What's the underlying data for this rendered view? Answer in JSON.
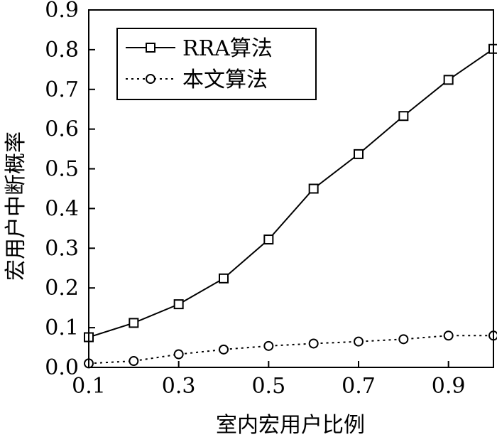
{
  "chart_data": {
    "type": "line",
    "xlabel": "室内宏用户比例",
    "ylabel": "宏用户中断概率",
    "xlim": [
      0.1,
      1.0
    ],
    "ylim": [
      0.0,
      0.9
    ],
    "x_ticks": [
      "0.1",
      "0.3",
      "0.5",
      "0.7",
      "0.9"
    ],
    "x_tick_values": [
      0.1,
      0.3,
      0.5,
      0.7,
      0.9
    ],
    "y_ticks": [
      "0.0",
      "0.1",
      "0.2",
      "0.3",
      "0.4",
      "0.5",
      "0.6",
      "0.7",
      "0.8",
      "0.9"
    ],
    "y_tick_values": [
      0.0,
      0.1,
      0.2,
      0.3,
      0.4,
      0.5,
      0.6,
      0.7,
      0.8,
      0.9
    ],
    "grid": false,
    "legend_position": "top-left",
    "x": [
      0.1,
      0.2,
      0.3,
      0.4,
      0.5,
      0.6,
      0.7,
      0.8,
      0.9,
      1.0
    ],
    "series": [
      {
        "name": "RRA算法",
        "marker": "square",
        "line_style": "solid",
        "color": "#000000",
        "values": [
          0.076,
          0.112,
          0.159,
          0.224,
          0.322,
          0.45,
          0.537,
          0.633,
          0.724,
          0.802
        ]
      },
      {
        "name": "本文算法",
        "marker": "circle",
        "line_style": "dotted",
        "color": "#000000",
        "values": [
          0.01,
          0.016,
          0.033,
          0.045,
          0.054,
          0.06,
          0.065,
          0.071,
          0.08,
          0.08
        ]
      }
    ]
  }
}
